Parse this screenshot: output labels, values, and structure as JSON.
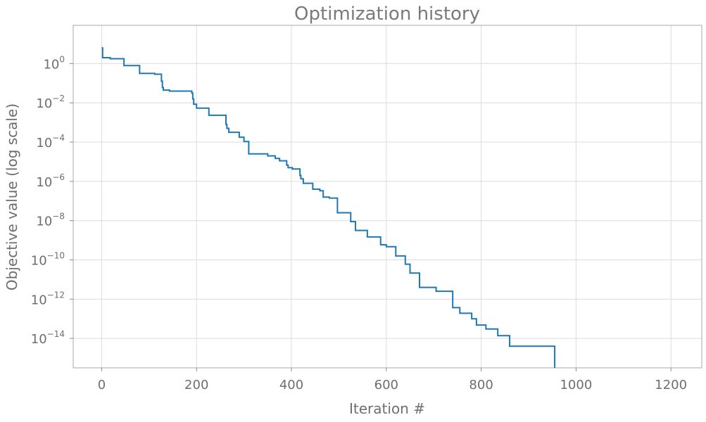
{
  "chart_data": {
    "type": "line",
    "title": "Optimization history",
    "xlabel": "Iteration #",
    "ylabel": "Objective value (log scale)",
    "y_scale": "log",
    "xlim": [
      -60,
      1265
    ],
    "ylim_log10": [
      -15.5,
      1.95
    ],
    "grid": true,
    "x_ticks": [
      0,
      200,
      400,
      600,
      800,
      1000,
      1200
    ],
    "y_ticks_exp": [
      0,
      -2,
      -4,
      -6,
      -8,
      -10,
      -12,
      -14
    ],
    "line_color": "#1f77b4",
    "series": [
      {
        "style": "step-post",
        "x": [
          0,
          2,
          18,
          47,
          80,
          112,
          126,
          128,
          130,
          143,
          190,
          192,
          194,
          200,
          226,
          262,
          264,
          268,
          290,
          300,
          310,
          350,
          366,
          375,
          390,
          393,
          402,
          418,
          420,
          425,
          445,
          460,
          467,
          480,
          497,
          525,
          535,
          560,
          588,
          600,
          620,
          640,
          650,
          670,
          705,
          740,
          755,
          780,
          790,
          810,
          835,
          860,
          955
        ],
        "log10y": [
          0.8,
          0.3,
          0.25,
          -0.1,
          -0.5,
          -0.54,
          -0.9,
          -1.22,
          -1.35,
          -1.4,
          -1.5,
          -1.8,
          -2.07,
          -2.27,
          -2.63,
          -3.1,
          -3.3,
          -3.5,
          -3.75,
          -3.97,
          -4.6,
          -4.7,
          -4.83,
          -4.95,
          -5.17,
          -5.3,
          -5.37,
          -5.7,
          -5.87,
          -6.1,
          -6.4,
          -6.48,
          -6.8,
          -6.85,
          -7.6,
          -8.05,
          -8.5,
          -8.83,
          -9.23,
          -9.33,
          -9.8,
          -10.22,
          -10.67,
          -11.4,
          -11.6,
          -12.43,
          -12.72,
          -13.0,
          -13.32,
          -13.52,
          -13.86,
          -14.4,
          -15.5
        ]
      }
    ]
  }
}
